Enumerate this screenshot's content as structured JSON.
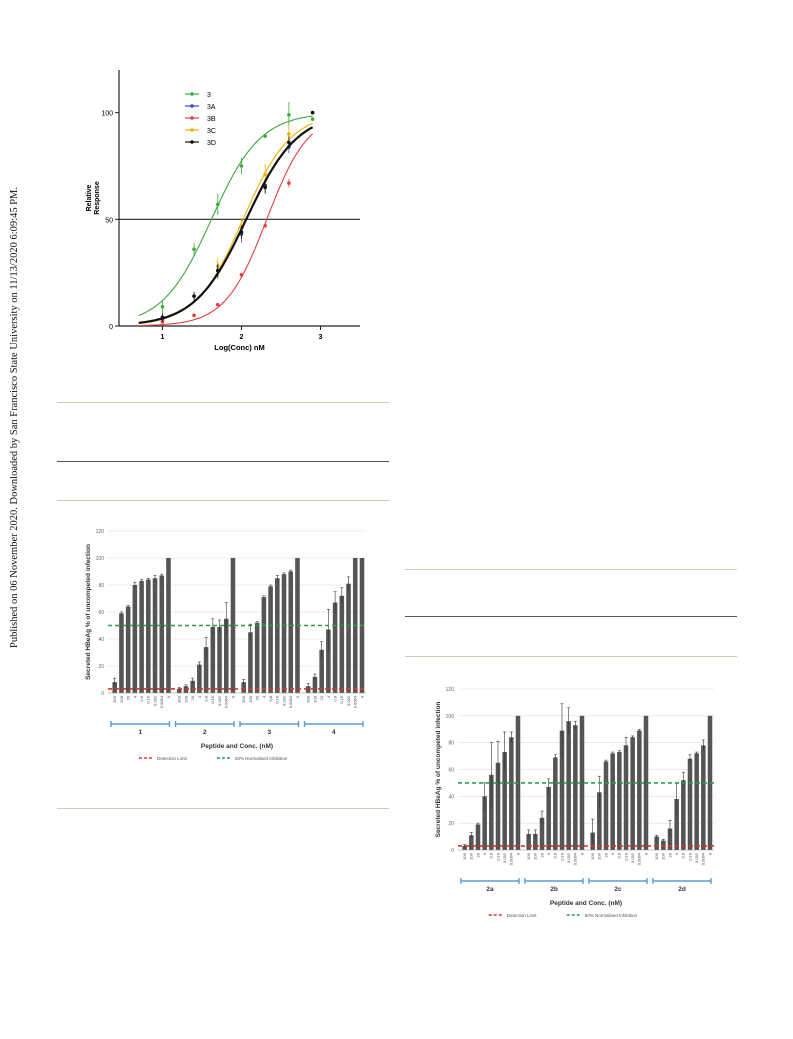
{
  "side_note": "Published on 06 November 2020. Downloaded by San Francisco State University on 11/13/2020 6:09:45 PM.",
  "chart_data": [
    {
      "type": "scatter",
      "title": "",
      "xlabel": "Log(Conc) nM",
      "ylabel": "Relative Response",
      "xlim": [
        0.45,
        3.5
      ],
      "ylim": [
        0,
        120
      ],
      "xticks": [
        "1",
        "2",
        "3"
      ],
      "yticks": [
        "0",
        "50",
        "100"
      ],
      "reference_line": 50,
      "legend_position": "top-left",
      "series": [
        {
          "name": "3",
          "color": "#3caa3c",
          "x": [
            1,
            1.4,
            1.7,
            2,
            2.3,
            2.6,
            2.9
          ],
          "y": [
            9,
            36,
            57,
            75,
            89,
            99,
            97
          ],
          "err": [
            3,
            3,
            5,
            4,
            1,
            6,
            0
          ]
        },
        {
          "name": "3A",
          "color": "#3b4cc0",
          "x": [
            1,
            1.4,
            1.7,
            2,
            2.3,
            2.6,
            2.9
          ],
          "y": [
            3,
            14,
            26,
            43,
            66,
            84,
            100
          ],
          "err": [
            2,
            2,
            4,
            4,
            3,
            3,
            0
          ]
        },
        {
          "name": "3B",
          "color": "#e04040",
          "x": [
            1,
            1.4,
            1.7,
            2,
            2.3,
            2.6,
            2.9
          ],
          "y": [
            2,
            5,
            10,
            24,
            47,
            67,
            100
          ],
          "err": [
            0,
            0,
            0,
            1,
            1,
            2,
            0
          ]
        },
        {
          "name": "3C",
          "color": "#f0b000",
          "x": [
            1,
            1.4,
            1.7,
            2,
            2.3,
            2.6,
            2.9
          ],
          "y": [
            4,
            14,
            28,
            46,
            71,
            90,
            100
          ],
          "err": [
            2,
            2,
            4,
            4,
            5,
            4,
            0
          ]
        },
        {
          "name": "3D",
          "color": "#111111",
          "x": [
            1,
            1.4,
            1.7,
            2,
            2.3,
            2.6,
            2.9
          ],
          "y": [
            4,
            14,
            26,
            44,
            65,
            86,
            100
          ],
          "err": [
            2,
            2,
            3,
            3,
            3,
            3,
            0
          ]
        }
      ]
    },
    {
      "type": "bar",
      "title": "",
      "ylabel": "Secreted HBeAg % of uncompeted infection",
      "xlabel": "Peptide and Conc. (nM)",
      "ylim": [
        0,
        120
      ],
      "yticks": [
        "0",
        "20",
        "40",
        "60",
        "80",
        "100",
        "120"
      ],
      "conc_labels": [
        "300",
        "100",
        "20",
        "4",
        "0.8",
        "0.16",
        "0.032",
        "0.0064",
        "0"
      ],
      "groups": [
        {
          "name": "1",
          "values": [
            8,
            59,
            64,
            80,
            83,
            84,
            85,
            87,
            100
          ],
          "err": [
            3,
            1,
            1,
            2,
            1,
            1,
            2,
            1,
            0
          ]
        },
        {
          "name": "2",
          "values": [
            3,
            5,
            9,
            21,
            34,
            49,
            49,
            55,
            100
          ],
          "err": [
            1,
            1,
            2,
            2,
            7,
            6,
            5,
            12,
            0
          ]
        },
        {
          "name": "3",
          "values": [
            8,
            45,
            52,
            71,
            79,
            85,
            88,
            90,
            100
          ],
          "err": [
            2,
            6,
            1,
            1,
            1,
            2,
            1,
            1,
            0
          ]
        },
        {
          "name": "4",
          "values": [
            5,
            12,
            32,
            47,
            67,
            72,
            81,
            100,
            100
          ],
          "err": [
            2,
            2,
            6,
            15,
            8,
            6,
            5,
            0,
            0
          ]
        }
      ],
      "lines": [
        {
          "name": "Detection Limit",
          "value": 3,
          "color": "#e0302a"
        },
        {
          "name": "50% Normalised Inhibition",
          "value": 50,
          "color": "#22a050"
        }
      ]
    },
    {
      "type": "bar",
      "title": "",
      "ylabel": "Secreted HBeAg % of uncompeted infection",
      "xlabel": "Peptide and Conc. (nM)",
      "ylim": [
        0,
        120
      ],
      "yticks": [
        "0",
        "20",
        "40",
        "60",
        "80",
        "100",
        "120"
      ],
      "conc_labels": [
        "300",
        "100",
        "20",
        "4",
        "0.8",
        "0.16",
        "0.032",
        "0.0064",
        "0"
      ],
      "groups": [
        {
          "name": "2a",
          "values": [
            3,
            11,
            19,
            40,
            56,
            65,
            73,
            84,
            100
          ],
          "err": [
            1,
            2,
            1,
            10,
            24,
            16,
            15,
            4,
            0
          ]
        },
        {
          "name": "2b",
          "values": [
            12,
            12,
            24,
            47,
            69,
            89,
            96,
            93,
            100
          ],
          "err": [
            3,
            3,
            5,
            6,
            2,
            20,
            10,
            3,
            0
          ]
        },
        {
          "name": "2c",
          "values": [
            13,
            43,
            66,
            72,
            73,
            78,
            84,
            89,
            100
          ],
          "err": [
            10,
            12,
            1,
            1,
            1,
            6,
            1,
            1,
            0
          ]
        },
        {
          "name": "2d",
          "values": [
            10,
            7,
            16,
            38,
            52,
            68,
            72,
            78,
            100
          ],
          "err": [
            1,
            1,
            6,
            12,
            6,
            3,
            1,
            4,
            0
          ]
        }
      ],
      "lines": [
        {
          "name": "Detection Limit",
          "value": 3,
          "color": "#e0302a"
        },
        {
          "name": "50% Normalised Inhibition",
          "value": 50,
          "color": "#22a050"
        }
      ]
    }
  ]
}
